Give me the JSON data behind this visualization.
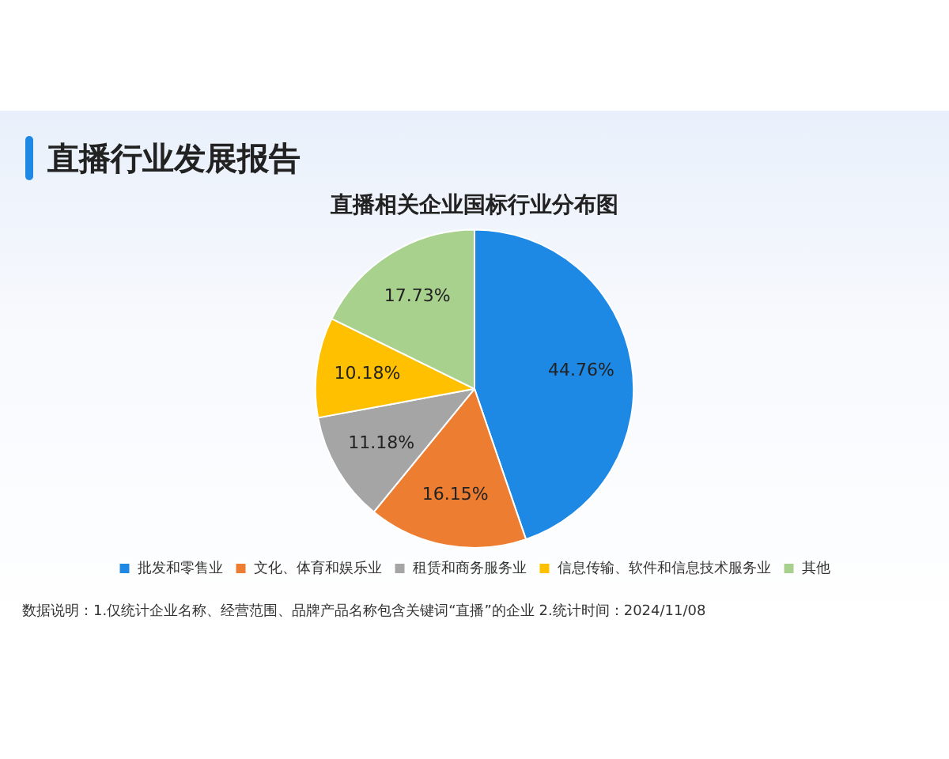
{
  "chart_data": {
    "type": "pie",
    "title": "直播行业发展报告",
    "subtitle": "直播相关企业国标行业分布图",
    "categories": [
      "批发和零售业",
      "文化、体育和娱乐业",
      "租赁和商务服务业",
      "信息传输、软件和信息技术服务业",
      "其他"
    ],
    "values": [
      44.76,
      16.15,
      11.18,
      10.18,
      17.73
    ],
    "value_labels": [
      "44.76%",
      "16.15%",
      "11.18%",
      "10.18%",
      "17.73%"
    ],
    "colors": [
      "#1e88e5",
      "#ed7d31",
      "#a5a5a5",
      "#ffc000",
      "#a9d18e"
    ],
    "legend": "bottom",
    "annotations": [
      "数据说明：1.仅统计企业名称、经营范围、品牌产品名称包含关键词“直播”的企业  2.统计时间：2024/11/08"
    ]
  }
}
